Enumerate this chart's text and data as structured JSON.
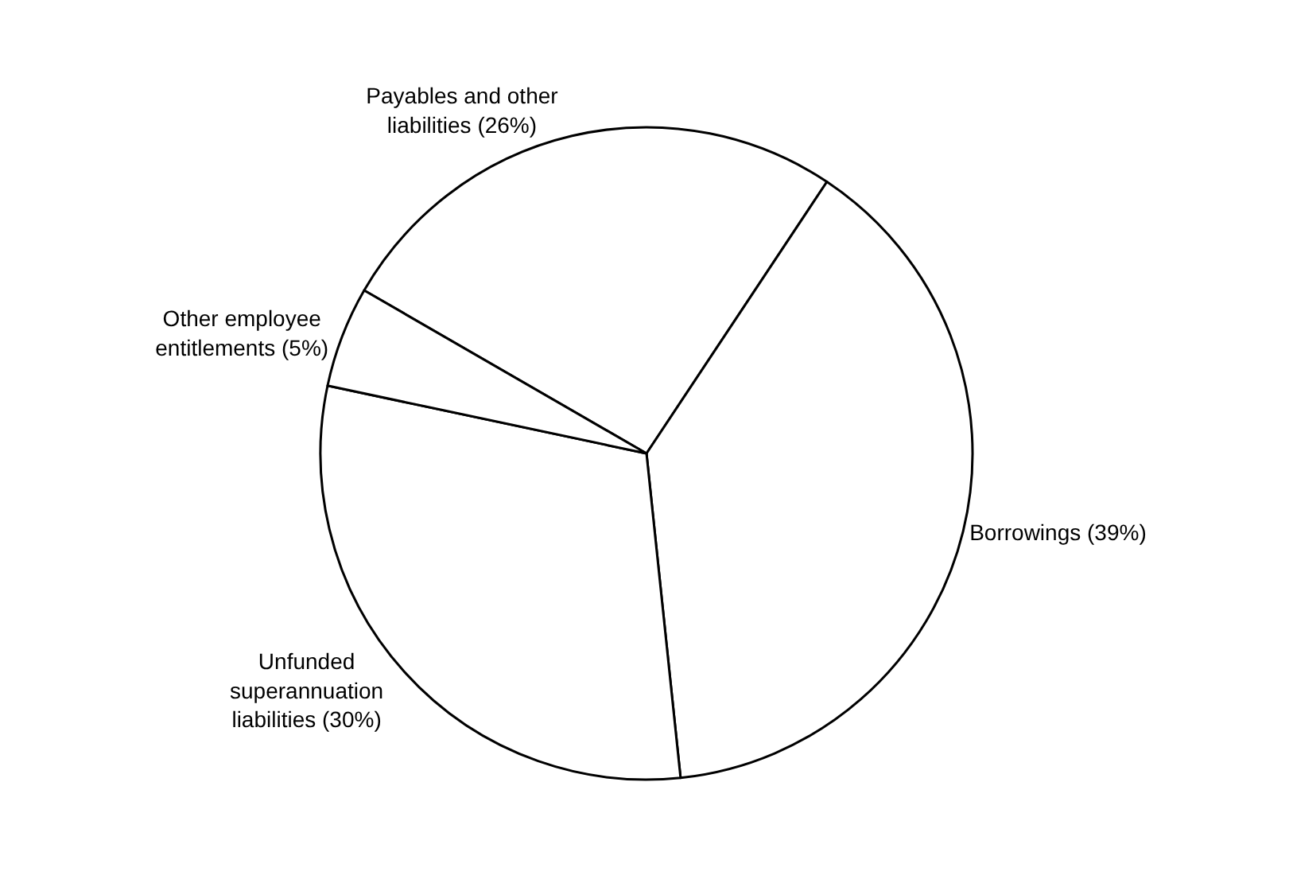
{
  "chart_data": {
    "type": "pie",
    "categories": [
      "Payables and other liabilities (26%)",
      "Borrowings (39%)",
      "Unfunded superannuation liabilities (30%)",
      "Other employee entitlements (5%)"
    ],
    "values": [
      26,
      39,
      30,
      5
    ],
    "colors": [
      "#ffffff",
      "#ffffff",
      "#ffffff",
      "#ffffff"
    ],
    "legend": false
  }
}
